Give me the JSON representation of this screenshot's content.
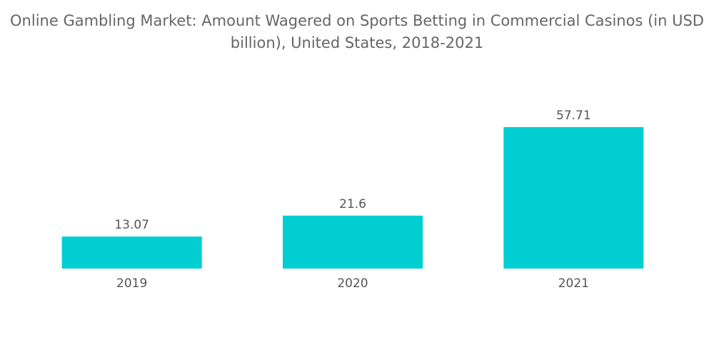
{
  "chart_data": {
    "type": "bar",
    "title": "Online Gambling Market: Amount Wagered on Sports Betting in Commercial Casinos (in USD billion), United States, 2018-2021",
    "categories": [
      "2019",
      "2020",
      "2021"
    ],
    "values": [
      13.07,
      21.6,
      57.71
    ],
    "value_labels": [
      "13.07",
      "21.6",
      "57.71"
    ],
    "xlabel": "",
    "ylabel": "",
    "ylim": [
      0,
      60
    ],
    "grid": false,
    "legend": "none",
    "bar_color": "#00CED1"
  }
}
